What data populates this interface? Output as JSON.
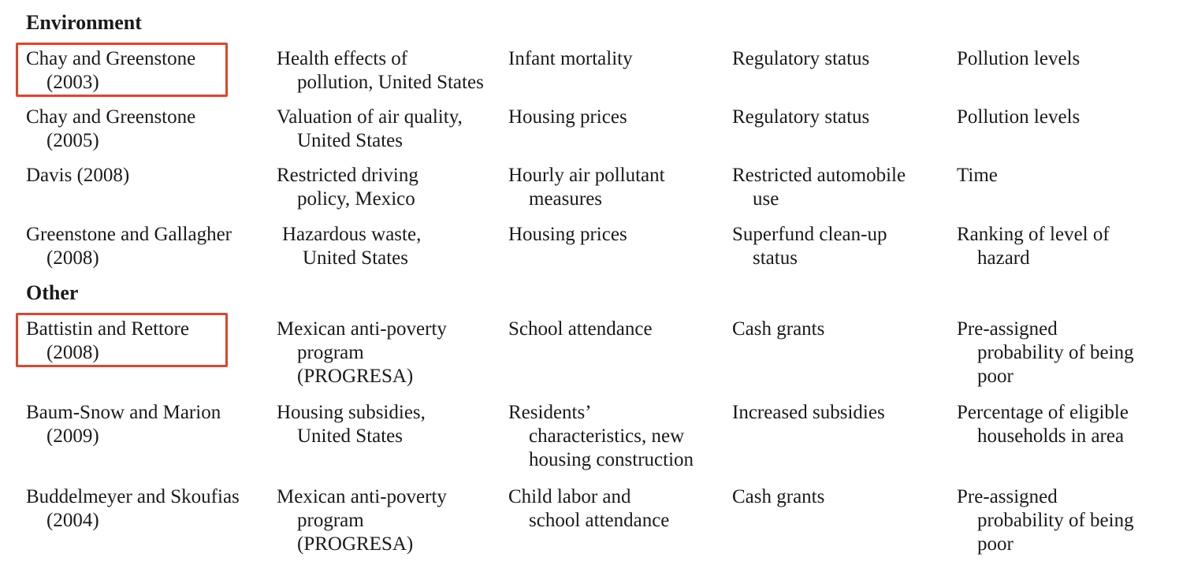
{
  "sections": [
    {
      "header": "Environment",
      "rows": [
        {
          "highlighted": true,
          "cells": [
            [
              "Chay and Greenstone",
              "(2003)"
            ],
            [
              "Health effects of",
              "pollution, United States"
            ],
            [
              "Infant mortality"
            ],
            [
              "Regulatory status"
            ],
            [
              "Pollution levels"
            ]
          ]
        },
        {
          "highlighted": false,
          "cells": [
            [
              "Chay and Greenstone",
              "(2005)"
            ],
            [
              "Valuation of air quality,",
              "United States"
            ],
            [
              "Housing prices"
            ],
            [
              "Regulatory status"
            ],
            [
              "Pollution levels"
            ]
          ]
        },
        {
          "highlighted": false,
          "cells": [
            [
              "Davis (2008)"
            ],
            [
              "Restricted driving",
              "policy, Mexico"
            ],
            [
              "Hourly air pollutant",
              "measures"
            ],
            [
              "Restricted automobile",
              "use"
            ],
            [
              "Time"
            ]
          ]
        },
        {
          "highlighted": false,
          "cells": [
            [
              "Greenstone and Gallagher",
              "(2008)"
            ],
            [
              "Hazardous waste,",
              "United States"
            ],
            [
              "Housing prices"
            ],
            [
              "Superfund clean-up",
              "status"
            ],
            [
              "Ranking of level of",
              "hazard"
            ]
          ]
        }
      ]
    },
    {
      "header": "Other",
      "rows": [
        {
          "highlighted": true,
          "cells": [
            [
              "Battistin and Rettore",
              "(2008)"
            ],
            [
              "Mexican anti-poverty",
              "program",
              "(PROGRESA)"
            ],
            [
              "School attendance"
            ],
            [
              "Cash grants"
            ],
            [
              "Pre-assigned",
              "probability of being",
              "poor"
            ]
          ]
        },
        {
          "highlighted": false,
          "cells": [
            [
              "Baum-Snow and Marion",
              "(2009)"
            ],
            [
              "Housing subsidies,",
              "United States"
            ],
            [
              "Residents’",
              "characteristics, new",
              "housing construction"
            ],
            [
              "Increased subsidies"
            ],
            [
              "Percentage of eligible",
              "households in area"
            ]
          ]
        },
        {
          "highlighted": false,
          "cells": [
            [
              "Buddelmeyer and Skoufias",
              "(2004)"
            ],
            [
              "Mexican anti-poverty",
              "program",
              "(PROGRESA)"
            ],
            [
              "Child labor and",
              "school attendance"
            ],
            [
              "Cash grants"
            ],
            [
              "Pre-assigned",
              "probability of being",
              "poor"
            ]
          ]
        }
      ]
    }
  ],
  "colors": {
    "highlight_border": "#e0452b",
    "text": "#1a1a1a"
  }
}
